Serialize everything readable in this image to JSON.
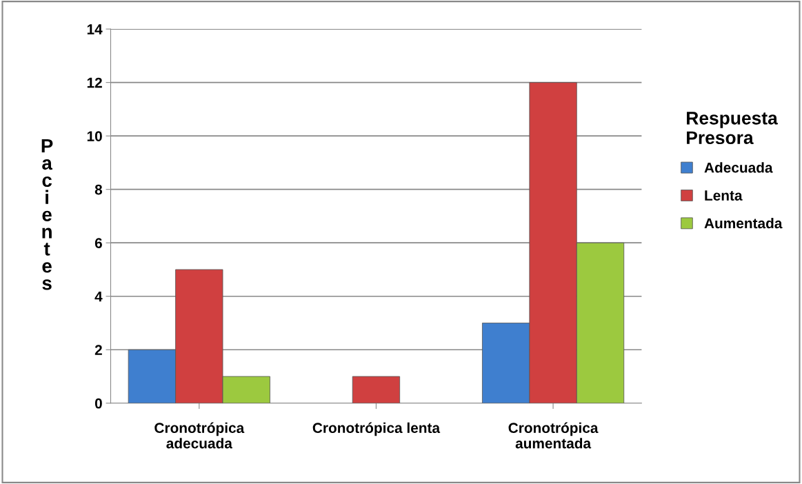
{
  "chart_data": {
    "type": "bar",
    "ylabel": "Pacientes",
    "legend_title": "Respuesta\nPresora",
    "categories": [
      "Cronotrópica\nadecuada",
      "Cronotrópica lenta",
      "Cronotrópica\naumentada"
    ],
    "series": [
      {
        "name": "Adecuada",
        "color": "#3f7fcf",
        "values": [
          2,
          null,
          3
        ]
      },
      {
        "name": "Lenta",
        "color": "#d04040",
        "values": [
          5,
          1,
          12
        ]
      },
      {
        "name": "Aumentada",
        "color": "#9cc93f",
        "values": [
          1,
          null,
          6
        ]
      }
    ],
    "ylim": [
      0,
      14
    ],
    "yticks": [
      0,
      2,
      4,
      6,
      8,
      10,
      12,
      14
    ],
    "grid": "y",
    "legend": "right"
  }
}
